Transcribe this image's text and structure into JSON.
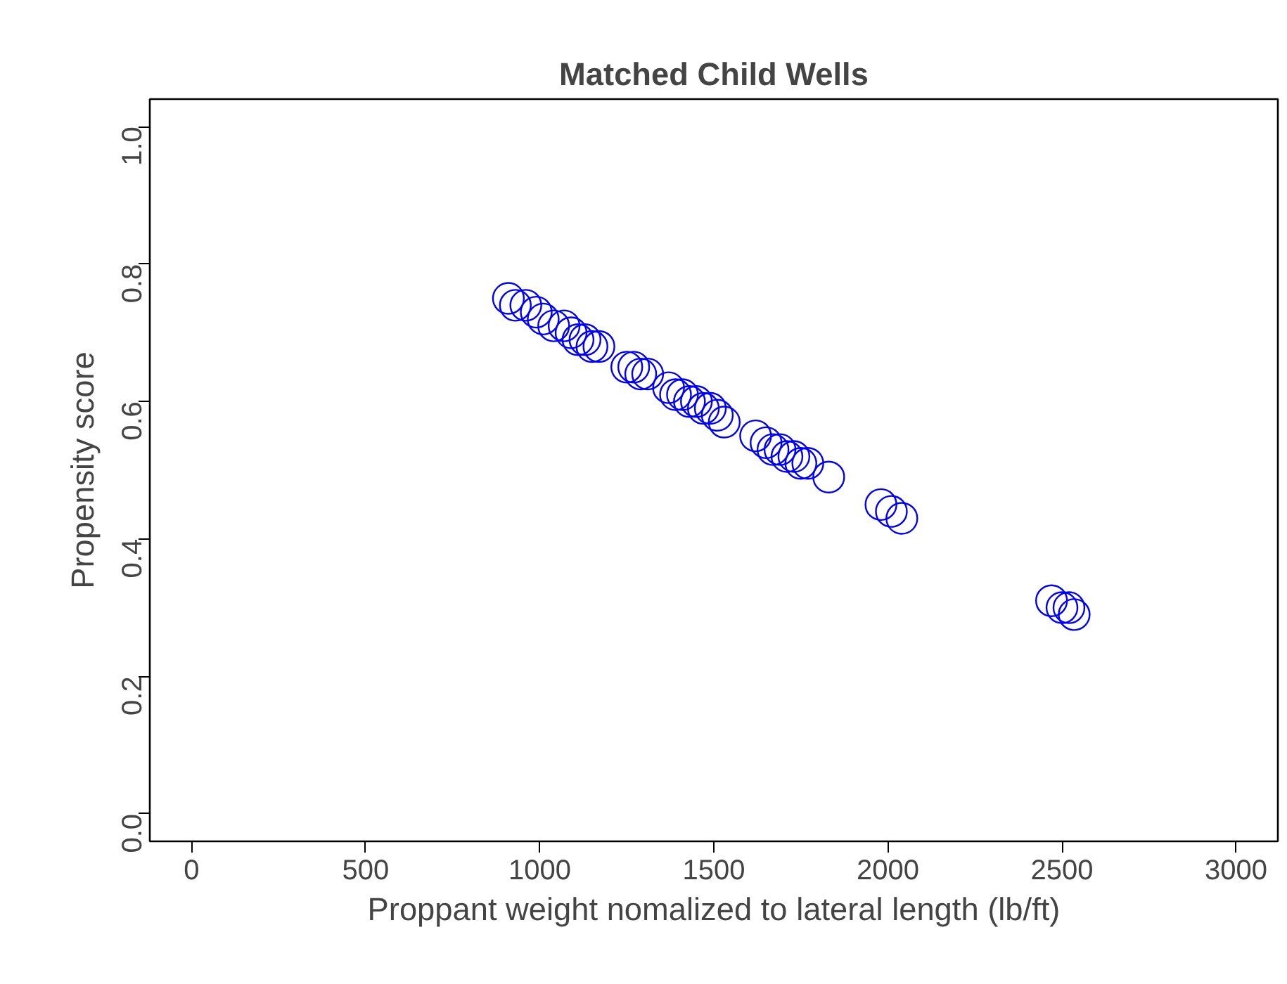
{
  "chart_data": {
    "type": "scatter",
    "title": "Matched Child Wells",
    "xlabel": "Proppant weight nomalized to lateral length (lb/ft)",
    "ylabel": "Propensity score",
    "xlim": [
      -120,
      3120
    ],
    "ylim": [
      -0.04,
      1.04
    ],
    "xticks": [
      0,
      500,
      1000,
      1500,
      2000,
      2500,
      3000
    ],
    "yticks": [
      {
        "value": 0,
        "label": "0.0"
      },
      {
        "value": 0.2,
        "label": "0.2"
      },
      {
        "value": 0.4,
        "label": "0.4"
      },
      {
        "value": 0.6,
        "label": "0.6"
      },
      {
        "value": 0.8,
        "label": "0.8"
      },
      {
        "value": 1,
        "label": "1.0"
      }
    ],
    "grid": false,
    "marker": "circle",
    "series": [
      {
        "color": "#0000ff",
        "x": [
          910,
          930,
          960,
          990,
          1010,
          1040,
          1070,
          1090,
          1110,
          1130,
          1150,
          1170,
          1250,
          1270,
          1290,
          1310,
          1370,
          1390,
          1410,
          1430,
          1450,
          1470,
          1490,
          1510,
          1530,
          1620,
          1650,
          1670,
          1690,
          1710,
          1730,
          1750,
          1770,
          1830,
          1980,
          2010,
          2040,
          2470,
          2500,
          2520,
          2535
        ],
        "values": [
          0.75,
          0.74,
          0.74,
          0.73,
          0.72,
          0.71,
          0.71,
          0.7,
          0.69,
          0.69,
          0.68,
          0.68,
          0.65,
          0.65,
          0.64,
          0.64,
          0.62,
          0.61,
          0.61,
          0.6,
          0.6,
          0.59,
          0.59,
          0.58,
          0.57,
          0.55,
          0.54,
          0.53,
          0.53,
          0.52,
          0.52,
          0.51,
          0.51,
          0.49,
          0.45,
          0.44,
          0.43,
          0.31,
          0.3,
          0.3,
          0.29
        ]
      }
    ]
  }
}
